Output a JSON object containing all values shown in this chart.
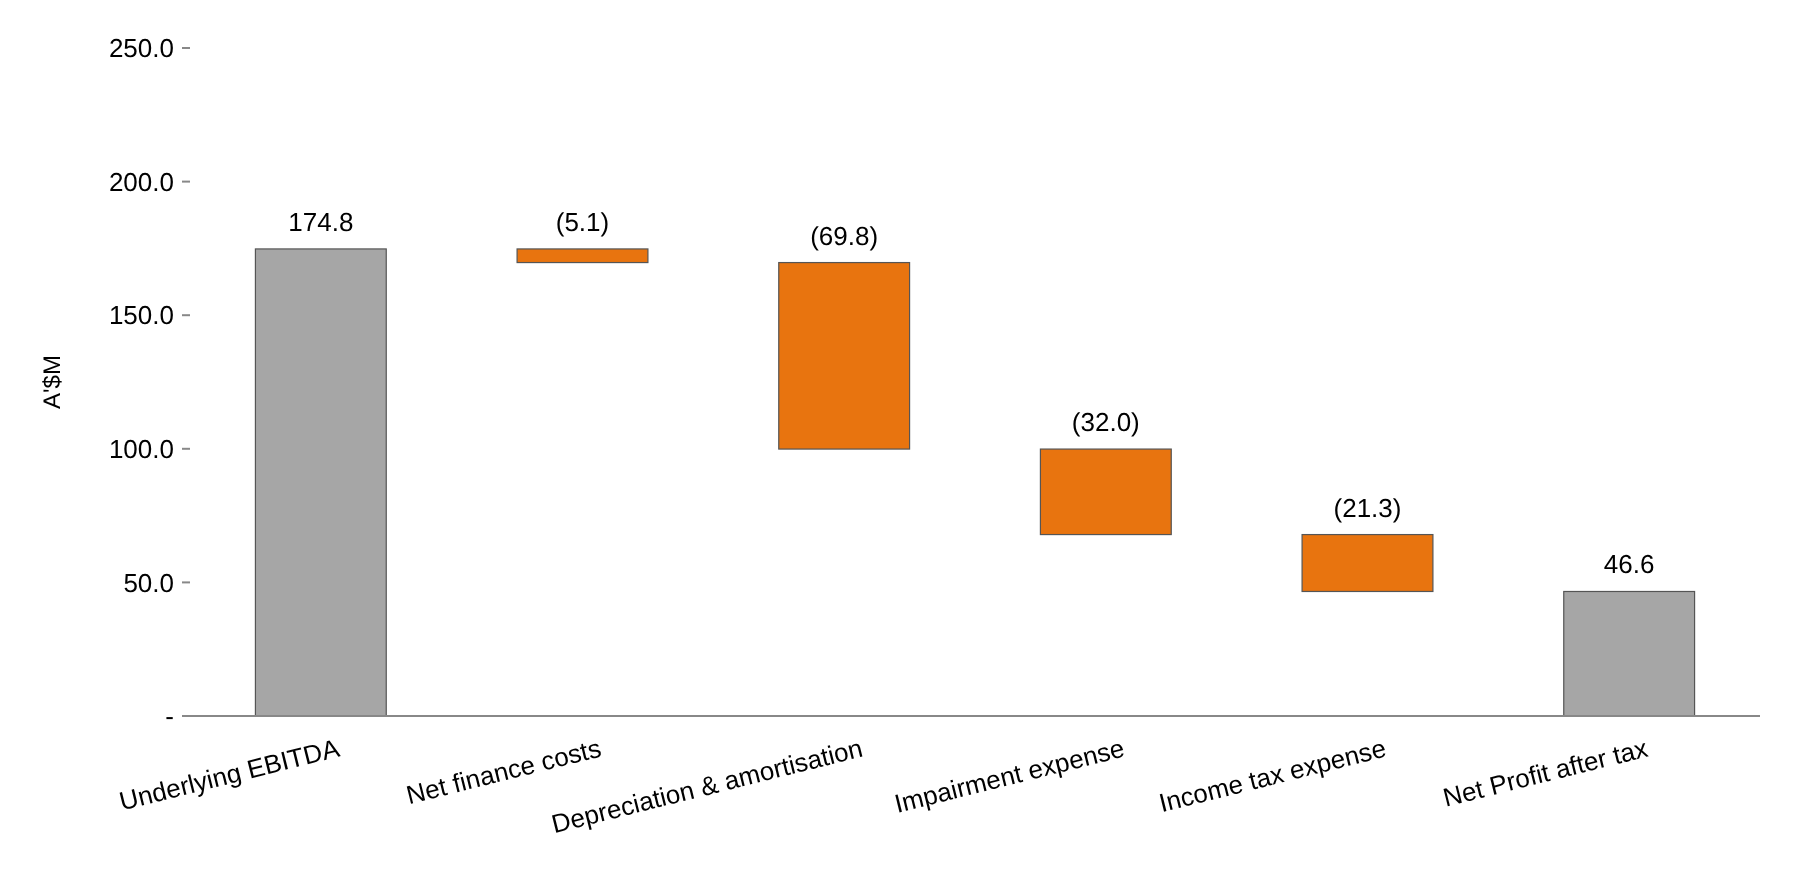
{
  "chart_data": {
    "type": "bar",
    "ylabel": "A'$M",
    "categories": [
      "Underlying EBITDA",
      "Net finance costs",
      "Depreciation & amortisation",
      "Impairment expense",
      "Income tax expense",
      "Net Profit after tax"
    ],
    "values": [
      174.8,
      -5.1,
      -69.8,
      -32.0,
      -21.3,
      46.6
    ],
    "base": [
      0,
      174.8,
      169.7,
      99.9,
      67.9,
      0
    ],
    "colors": [
      "#a6a6a6",
      "#e8740f",
      "#e8740f",
      "#e8740f",
      "#e8740f",
      "#a6a6a6"
    ],
    "value_labels": [
      "174.8",
      "(5.1)",
      "(69.8)",
      "(32.0)",
      "(21.3)",
      "46.6"
    ],
    "ylim": [
      0,
      250
    ],
    "yticks": [
      {
        "value": 0,
        "label": "-"
      },
      {
        "value": 50,
        "label": "50.0"
      },
      {
        "value": 100,
        "label": "100.0"
      },
      {
        "value": 150,
        "label": "150.0"
      },
      {
        "value": 200,
        "label": "200.0"
      },
      {
        "value": 250,
        "label": "250.0"
      }
    ],
    "grid": false
  }
}
